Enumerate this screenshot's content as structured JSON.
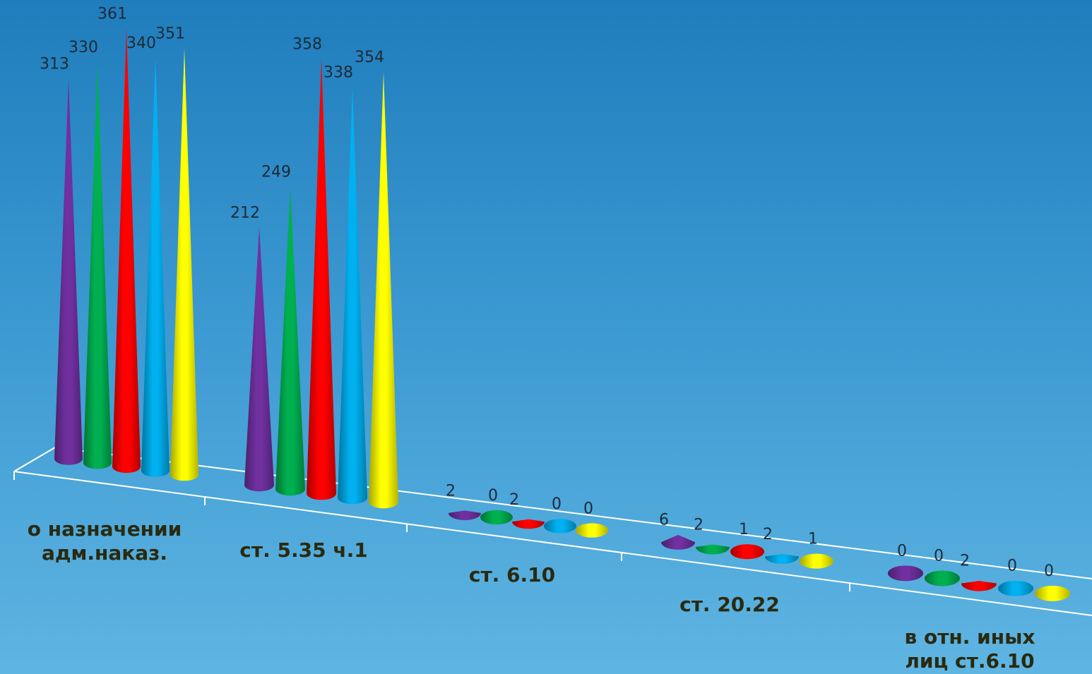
{
  "chart_data": {
    "type": "bar",
    "categories": [
      "о назначении адм.наказ.",
      "ст. 5.35 ч.1",
      "ст. 6.10",
      "ст. 20.22",
      "в отн. иных лиц ст.6.10"
    ],
    "series": [
      {
        "color": "#7030a0",
        "values": [
          313,
          212,
          2,
          6,
          0
        ]
      },
      {
        "color": "#00b050",
        "values": [
          330,
          249,
          0,
          2,
          0
        ]
      },
      {
        "color": "#ff0000",
        "values": [
          361,
          358,
          2,
          1,
          2
        ]
      },
      {
        "color": "#00b0f0",
        "values": [
          340,
          338,
          0,
          2,
          0
        ]
      },
      {
        "color": "#ffff00",
        "values": [
          351,
          354,
          0,
          1,
          0
        ]
      }
    ]
  }
}
